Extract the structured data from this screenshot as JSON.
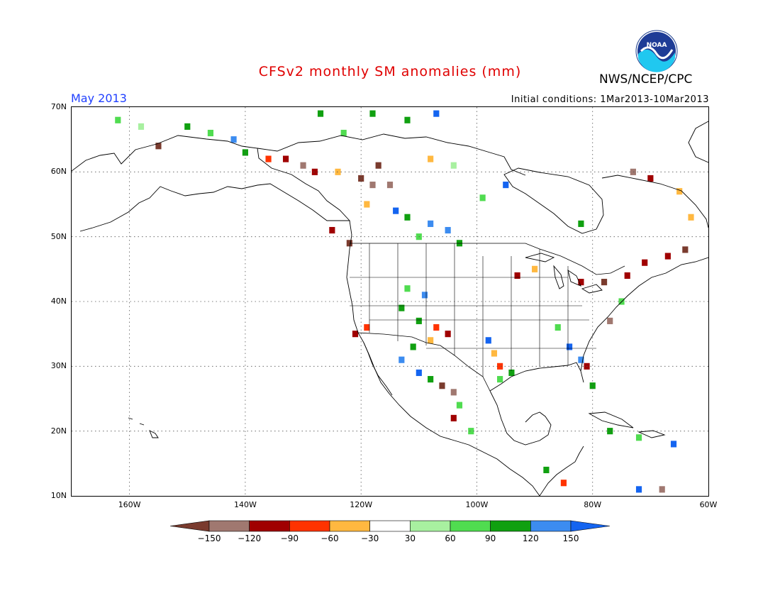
{
  "header": {
    "title": "CFSv2 monthly SM anomalies (mm)",
    "org": "NWS/NCEP/CPC",
    "month": "May 2013",
    "initial_conditions": "Initial conditions: 1Mar2013-10Mar2013",
    "logo_text": "NOAA"
  },
  "map": {
    "lon_range": [
      -170,
      -60
    ],
    "lat_range": [
      10,
      70
    ],
    "lat_labels": [
      "10N",
      "20N",
      "30N",
      "40N",
      "50N",
      "60N",
      "70N"
    ],
    "lat_values": [
      10,
      20,
      30,
      40,
      50,
      60,
      70
    ],
    "lon_labels": [
      "160W",
      "140W",
      "120W",
      "100W",
      "80W",
      "60W"
    ],
    "lon_values": [
      -160,
      -140,
      -120,
      -100,
      -80,
      -60
    ],
    "grid": "dotted",
    "anomaly_cells": [
      {
        "lat": 68,
        "lon": -162,
        "class": "pos60"
      },
      {
        "lat": 67,
        "lon": -158,
        "class": "pos30"
      },
      {
        "lat": 67,
        "lon": -150,
        "class": "pos90"
      },
      {
        "lat": 66,
        "lon": -146,
        "class": "pos60"
      },
      {
        "lat": 65,
        "lon": -142,
        "class": "pos120"
      },
      {
        "lat": 64,
        "lon": -155,
        "class": "neg150"
      },
      {
        "lat": 63,
        "lon": -140,
        "class": "pos90"
      },
      {
        "lat": 62,
        "lon": -136,
        "class": "neg60"
      },
      {
        "lat": 62,
        "lon": -133,
        "class": "neg90"
      },
      {
        "lat": 61,
        "lon": -130,
        "class": "neg120"
      },
      {
        "lat": 60,
        "lon": -128,
        "class": "neg90"
      },
      {
        "lat": 60,
        "lon": -124,
        "class": "neg30"
      },
      {
        "lat": 59,
        "lon": -120,
        "class": "neg150"
      },
      {
        "lat": 58,
        "lon": -118,
        "class": "neg120"
      },
      {
        "lat": 58,
        "lon": -115,
        "class": "neg120"
      },
      {
        "lat": 61,
        "lon": -117,
        "class": "neg150"
      },
      {
        "lat": 69,
        "lon": -127,
        "class": "pos90"
      },
      {
        "lat": 69,
        "lon": -118,
        "class": "pos90"
      },
      {
        "lat": 69,
        "lon": -107,
        "class": "pos150"
      },
      {
        "lat": 68,
        "lon": -112,
        "class": "pos90"
      },
      {
        "lat": 66,
        "lon": -123,
        "class": "pos60"
      },
      {
        "lat": 62,
        "lon": -108,
        "class": "neg30"
      },
      {
        "lat": 61,
        "lon": -104,
        "class": "pos30"
      },
      {
        "lat": 53,
        "lon": -112,
        "class": "pos90"
      },
      {
        "lat": 52,
        "lon": -108,
        "class": "pos120"
      },
      {
        "lat": 51,
        "lon": -105,
        "class": "pos120"
      },
      {
        "lat": 50,
        "lon": -110,
        "class": "pos60"
      },
      {
        "lat": 49,
        "lon": -103,
        "class": "pos90"
      },
      {
        "lat": 54,
        "lon": -114,
        "class": "pos150"
      },
      {
        "lat": 55,
        "lon": -119,
        "class": "neg30"
      },
      {
        "lat": 51,
        "lon": -125,
        "class": "neg90"
      },
      {
        "lat": 49,
        "lon": -122,
        "class": "neg150"
      },
      {
        "lat": 44,
        "lon": -93,
        "class": "neg90"
      },
      {
        "lat": 45,
        "lon": -90,
        "class": "neg30"
      },
      {
        "lat": 43,
        "lon": -82,
        "class": "neg90"
      },
      {
        "lat": 43,
        "lon": -78,
        "class": "neg150"
      },
      {
        "lat": 44,
        "lon": -74,
        "class": "neg90"
      },
      {
        "lat": 46,
        "lon": -71,
        "class": "neg90"
      },
      {
        "lat": 60,
        "lon": -73,
        "class": "neg120"
      },
      {
        "lat": 59,
        "lon": -70,
        "class": "neg90"
      },
      {
        "lat": 57,
        "lon": -65,
        "class": "neg30"
      },
      {
        "lat": 53,
        "lon": -63,
        "class": "neg30"
      },
      {
        "lat": 48,
        "lon": -64,
        "class": "neg150"
      },
      {
        "lat": 47,
        "lon": -67,
        "class": "neg90"
      },
      {
        "lat": 42,
        "lon": -112,
        "class": "pos60"
      },
      {
        "lat": 41,
        "lon": -109,
        "class": "pos120"
      },
      {
        "lat": 39,
        "lon": -113,
        "class": "pos90"
      },
      {
        "lat": 37,
        "lon": -110,
        "class": "pos90"
      },
      {
        "lat": 36,
        "lon": -107,
        "class": "neg60"
      },
      {
        "lat": 35,
        "lon": -105,
        "class": "neg90"
      },
      {
        "lat": 34,
        "lon": -108,
        "class": "neg30"
      },
      {
        "lat": 33,
        "lon": -111,
        "class": "pos90"
      },
      {
        "lat": 31,
        "lon": -113,
        "class": "pos120"
      },
      {
        "lat": 29,
        "lon": -110,
        "class": "pos150"
      },
      {
        "lat": 28,
        "lon": -108,
        "class": "pos90"
      },
      {
        "lat": 27,
        "lon": -106,
        "class": "neg150"
      },
      {
        "lat": 26,
        "lon": -104,
        "class": "neg120"
      },
      {
        "lat": 24,
        "lon": -103,
        "class": "pos60"
      },
      {
        "lat": 22,
        "lon": -104,
        "class": "neg90"
      },
      {
        "lat": 20,
        "lon": -101,
        "class": "pos60"
      },
      {
        "lat": 36,
        "lon": -119,
        "class": "neg60"
      },
      {
        "lat": 35,
        "lon": -121,
        "class": "neg90"
      },
      {
        "lat": 34,
        "lon": -98,
        "class": "pos150"
      },
      {
        "lat": 32,
        "lon": -97,
        "class": "neg30"
      },
      {
        "lat": 30,
        "lon": -96,
        "class": "neg60"
      },
      {
        "lat": 29,
        "lon": -94,
        "class": "pos90"
      },
      {
        "lat": 28,
        "lon": -96,
        "class": "pos60"
      },
      {
        "lat": 33,
        "lon": -84,
        "class": "pos150"
      },
      {
        "lat": 31,
        "lon": -82,
        "class": "pos120"
      },
      {
        "lat": 30,
        "lon": -81,
        "class": "neg90"
      },
      {
        "lat": 27,
        "lon": -80,
        "class": "pos90"
      },
      {
        "lat": 36,
        "lon": -86,
        "class": "pos60"
      },
      {
        "lat": 37,
        "lon": -77,
        "class": "neg120"
      },
      {
        "lat": 40,
        "lon": -75,
        "class": "pos60"
      },
      {
        "lat": 20,
        "lon": -77,
        "class": "pos90"
      },
      {
        "lat": 19,
        "lon": -72,
        "class": "pos60"
      },
      {
        "lat": 18,
        "lon": -66,
        "class": "pos150"
      },
      {
        "lat": 14,
        "lon": -88,
        "class": "pos90"
      },
      {
        "lat": 12,
        "lon": -85,
        "class": "neg60"
      },
      {
        "lat": 11,
        "lon": -72,
        "class": "pos150"
      },
      {
        "lat": 11,
        "lon": -68,
        "class": "neg120"
      },
      {
        "lat": 52,
        "lon": -82,
        "class": "pos90"
      },
      {
        "lat": 58,
        "lon": -95,
        "class": "pos150"
      },
      {
        "lat": 56,
        "lon": -99,
        "class": "pos60"
      }
    ]
  },
  "colorbar": {
    "bins": [
      {
        "key": "neg150",
        "color": "#7a3b2e"
      },
      {
        "key": "neg120",
        "color": "#a07870"
      },
      {
        "key": "neg90",
        "color": "#a00000"
      },
      {
        "key": "neg60",
        "color": "#ff3300"
      },
      {
        "key": "neg30",
        "color": "#ffb840"
      },
      {
        "key": "zero",
        "color": "#ffffff"
      },
      {
        "key": "pos30",
        "color": "#a8f0a0"
      },
      {
        "key": "pos60",
        "color": "#50dc50"
      },
      {
        "key": "pos90",
        "color": "#10a010"
      },
      {
        "key": "pos120",
        "color": "#3c8cf0"
      },
      {
        "key": "pos150",
        "color": "#1464f0"
      }
    ],
    "labels": [
      "-150",
      "-120",
      "-90",
      "-60",
      "-30",
      "30",
      "60",
      "90",
      "120",
      "150"
    ]
  }
}
